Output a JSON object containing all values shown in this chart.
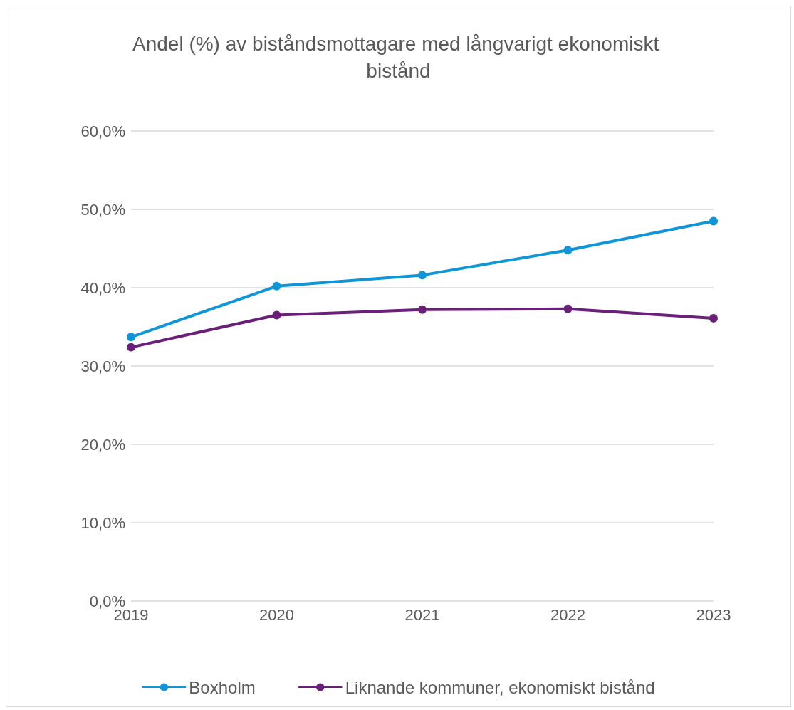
{
  "chart_data": {
    "type": "line",
    "title": "Andel (%) av biståndsmottagare med långvarigt ekonomiskt bistånd",
    "categories": [
      "2019",
      "2020",
      "2021",
      "2022",
      "2023"
    ],
    "series": [
      {
        "name": "Boxholm",
        "color": "#0f96d8",
        "values": [
          33.7,
          40.2,
          41.6,
          44.8,
          48.5
        ]
      },
      {
        "name": "Liknande kommuner, ekonomiskt bistånd",
        "color": "#6a1f78",
        "values": [
          32.4,
          36.5,
          37.2,
          37.3,
          36.1
        ]
      }
    ],
    "ylim": [
      0,
      60
    ],
    "yticks": [
      {
        "value": 0,
        "label": "0,0%"
      },
      {
        "value": 10,
        "label": "10,0%"
      },
      {
        "value": 20,
        "label": "20,0%"
      },
      {
        "value": 30,
        "label": "30,0%"
      },
      {
        "value": 40,
        "label": "40,0%"
      },
      {
        "value": 50,
        "label": "50,0%"
      },
      {
        "value": 60,
        "label": "60,0%"
      }
    ],
    "grid": "y",
    "legend": "bottom",
    "marker": "circle",
    "line_style": "solid"
  }
}
